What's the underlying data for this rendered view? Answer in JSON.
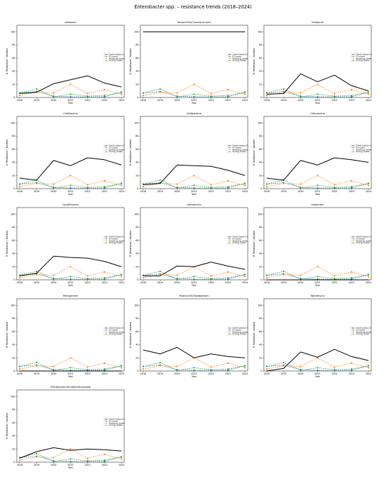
{
  "figure": {
    "title": "Enterobacter spp. – resistance trends (2018–2024)"
  },
  "chart_data": {
    "type": "line",
    "x": [
      "2018",
      "2019",
      "2020",
      "2021",
      "2022",
      "2023",
      "2024"
    ],
    "xlabel": "Year",
    "ylabel": "% Resistance / isolates",
    "ylim": [
      0,
      110
    ],
    "yticks": [
      0,
      20,
      40,
      60,
      80,
      100
    ],
    "legend_placement": "right",
    "series_defs": [
      {
        "key": "overall",
        "name": "Overall resistance %",
        "color": "#000000",
        "style": "solid",
        "marker": "none"
      },
      {
        "key": "icu",
        "name": "ICU isolates",
        "color": "#1f77b4",
        "style": "dashed",
        "marker": "circle"
      },
      {
        "key": "hem",
        "name": "Hematology isolates",
        "color": "#ff7f0e",
        "style": "dashed",
        "marker": "circle"
      },
      {
        "key": "onc",
        "name": "Oncology isolates",
        "color": "#2ca02c",
        "style": "dashed",
        "marker": "circle"
      }
    ],
    "panels": [
      {
        "title": "Amikacin",
        "series": {
          "overall": [
            6,
            8,
            21,
            27,
            33,
            22,
            16
          ],
          "icu": [
            7,
            9,
            2,
            1,
            1,
            1,
            8
          ],
          "hem": [
            3,
            8,
            7,
            20,
            6,
            12,
            5
          ],
          "onc": [
            7,
            13,
            1,
            5,
            2,
            3,
            8
          ]
        }
      },
      {
        "title": "Amoxicillin/Clavulanic Acid",
        "series": {
          "overall": [
            100,
            100,
            100,
            100,
            100,
            100,
            100
          ],
          "icu": [
            7,
            9,
            2,
            1,
            1,
            1,
            8
          ],
          "hem": [
            3,
            8,
            7,
            20,
            6,
            12,
            5
          ],
          "onc": [
            7,
            13,
            1,
            5,
            2,
            3,
            8
          ]
        }
      },
      {
        "title": "Cefepime",
        "series": {
          "overall": [
            5,
            6,
            36,
            24,
            34,
            18,
            10
          ],
          "icu": [
            7,
            9,
            2,
            1,
            1,
            1,
            8
          ],
          "hem": [
            3,
            8,
            7,
            20,
            6,
            12,
            5
          ],
          "onc": [
            7,
            13,
            1,
            5,
            2,
            3,
            8
          ]
        }
      },
      {
        "title": "Cefotaxime",
        "series": {
          "overall": [
            16,
            13,
            43,
            35,
            47,
            44,
            36
          ],
          "icu": [
            7,
            9,
            2,
            1,
            1,
            1,
            8
          ],
          "hem": [
            3,
            8,
            7,
            20,
            6,
            12,
            5
          ],
          "onc": [
            7,
            13,
            1,
            5,
            2,
            3,
            8
          ]
        }
      },
      {
        "title": "Ceftazidime",
        "series": {
          "overall": [
            6,
            8,
            36,
            35,
            34,
            28,
            20
          ],
          "icu": [
            7,
            9,
            2,
            1,
            1,
            1,
            8
          ],
          "hem": [
            3,
            8,
            7,
            20,
            6,
            12,
            5
          ],
          "onc": [
            7,
            13,
            1,
            5,
            2,
            3,
            8
          ]
        }
      },
      {
        "title": "Cefuroxime",
        "series": {
          "overall": [
            16,
            13,
            43,
            36,
            47,
            44,
            40
          ],
          "icu": [
            7,
            9,
            2,
            1,
            1,
            1,
            8
          ],
          "hem": [
            3,
            8,
            7,
            20,
            6,
            12,
            5
          ],
          "onc": [
            7,
            13,
            1,
            5,
            2,
            3,
            8
          ]
        }
      },
      {
        "title": "Ciprofloxacin",
        "series": {
          "overall": [
            6,
            10,
            36,
            34,
            33,
            28,
            20
          ],
          "icu": [
            7,
            9,
            2,
            1,
            1,
            1,
            8
          ],
          "hem": [
            3,
            8,
            7,
            20,
            6,
            12,
            5
          ],
          "onc": [
            7,
            13,
            1,
            5,
            2,
            3,
            8
          ]
        }
      },
      {
        "title": "Gentamicin",
        "series": {
          "overall": [
            6,
            6,
            21,
            20,
            27,
            21,
            16
          ],
          "icu": [
            7,
            9,
            2,
            1,
            1,
            1,
            8
          ],
          "hem": [
            3,
            8,
            7,
            20,
            6,
            12,
            5
          ],
          "onc": [
            7,
            13,
            1,
            5,
            2,
            3,
            8
          ]
        }
      },
      {
        "title": "Imipenem",
        "series": {
          "overall": [
            0,
            0,
            0,
            0,
            0,
            0,
            0
          ],
          "icu": [
            7,
            9,
            2,
            1,
            1,
            1,
            8
          ],
          "hem": [
            3,
            8,
            7,
            20,
            6,
            12,
            5
          ],
          "onc": [
            7,
            13,
            1,
            5,
            2,
            3,
            8
          ]
        }
      },
      {
        "title": "Meropenem",
        "series": {
          "overall": [
            0,
            0,
            0,
            0,
            0,
            0,
            0
          ],
          "icu": [
            7,
            9,
            2,
            1,
            1,
            1,
            8
          ],
          "hem": [
            3,
            8,
            7,
            20,
            6,
            12,
            5
          ],
          "onc": [
            7,
            13,
            1,
            5,
            2,
            3,
            8
          ]
        }
      },
      {
        "title": "Piperacillin/Tazobactam",
        "series": {
          "overall": [
            32,
            26,
            36,
            20,
            26,
            22,
            20
          ],
          "icu": [
            7,
            9,
            2,
            1,
            1,
            1,
            8
          ],
          "hem": [
            3,
            8,
            7,
            20,
            6,
            12,
            5
          ],
          "onc": [
            7,
            13,
            1,
            5,
            2,
            3,
            8
          ]
        }
      },
      {
        "title": "Tobramycin",
        "series": {
          "overall": [
            0,
            4,
            29,
            21,
            33,
            22,
            16
          ],
          "icu": [
            7,
            9,
            2,
            1,
            1,
            1,
            8
          ],
          "hem": [
            3,
            8,
            7,
            20,
            6,
            12,
            5
          ],
          "onc": [
            7,
            13,
            1,
            5,
            2,
            3,
            8
          ]
        }
      },
      {
        "title": "Trimethoprim/Sulfamethoxazole",
        "series": {
          "overall": [
            6,
            16,
            22,
            18,
            20,
            19,
            17
          ],
          "icu": [
            7,
            9,
            2,
            1,
            1,
            1,
            8
          ],
          "hem": [
            3,
            8,
            7,
            20,
            6,
            12,
            5
          ],
          "onc": [
            7,
            13,
            1,
            5,
            2,
            3,
            8
          ]
        }
      }
    ]
  }
}
